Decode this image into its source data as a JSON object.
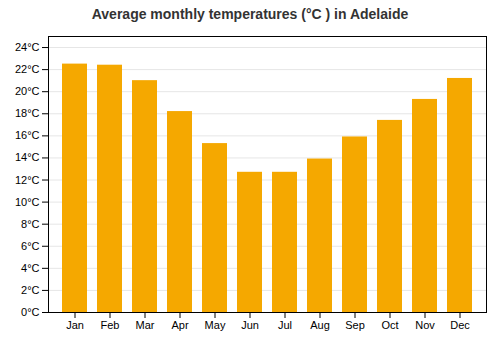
{
  "chart_data": {
    "type": "bar",
    "title": "Average monthly temperatures (°C ) in Adelaide",
    "categories": [
      "Jan",
      "Feb",
      "Mar",
      "Apr",
      "May",
      "Jun",
      "Jul",
      "Aug",
      "Sep",
      "Oct",
      "Nov",
      "Dec"
    ],
    "values": [
      22.5,
      22.4,
      21.0,
      18.2,
      15.3,
      12.7,
      12.7,
      13.9,
      15.9,
      17.4,
      19.3,
      21.2
    ],
    "color": "#F5A800",
    "ylim": [
      0,
      25
    ],
    "yticks": [
      {
        "value": 0,
        "label": "0°C"
      },
      {
        "value": 2,
        "label": "2°C"
      },
      {
        "value": 4,
        "label": "4°C"
      },
      {
        "value": 6,
        "label": "6°C"
      },
      {
        "value": 8,
        "label": "8°C"
      },
      {
        "value": 10,
        "label": "10°C"
      },
      {
        "value": 12,
        "label": "12°C"
      },
      {
        "value": 14,
        "label": "14°C"
      },
      {
        "value": 16,
        "label": "16°C"
      },
      {
        "value": 18,
        "label": "18°C"
      },
      {
        "value": 20,
        "label": "20°C"
      },
      {
        "value": 22,
        "label": "22°C"
      },
      {
        "value": 24,
        "label": "24°C"
      }
    ],
    "grid": true
  }
}
